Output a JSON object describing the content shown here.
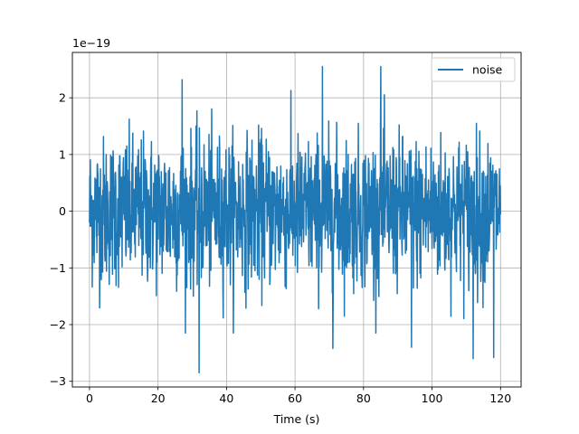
{
  "chart_data": {
    "type": "line",
    "title": "",
    "xlabel": "Time (s)",
    "ylabel": "",
    "offset_text": "1e−19",
    "y_scale_exponent": -19,
    "xlim": [
      -5,
      126
    ],
    "ylim": [
      -3.1e-19,
      2.8e-19
    ],
    "x_ticks": [
      0,
      20,
      40,
      60,
      80,
      100,
      120
    ],
    "x_tick_labels": [
      "0",
      "20",
      "40",
      "60",
      "80",
      "100",
      "120"
    ],
    "y_ticks": [
      -3e-19,
      -2e-19,
      -1e-19,
      0,
      1e-19,
      2e-19
    ],
    "y_tick_labels": [
      "−3",
      "−2",
      "−1",
      "0",
      "1",
      "2"
    ],
    "grid": true,
    "legend_position": "top-right",
    "series": [
      {
        "name": "noise",
        "color": "#1f77b4",
        "x_start": 0,
        "x_end": 120,
        "std": 6.5e-20,
        "notable_points": [
          {
            "x": 32,
            "y": -2.85e-19
          },
          {
            "x": 85,
            "y": 2.55e-19
          },
          {
            "x": 68,
            "y": 2.55e-19
          },
          {
            "x": 27,
            "y": 2.32e-19
          },
          {
            "x": 112,
            "y": -2.6e-19
          },
          {
            "x": 118,
            "y": -2.58e-19
          },
          {
            "x": 71,
            "y": -2.42e-19
          },
          {
            "x": 94,
            "y": -2.4e-19
          }
        ]
      }
    ]
  }
}
